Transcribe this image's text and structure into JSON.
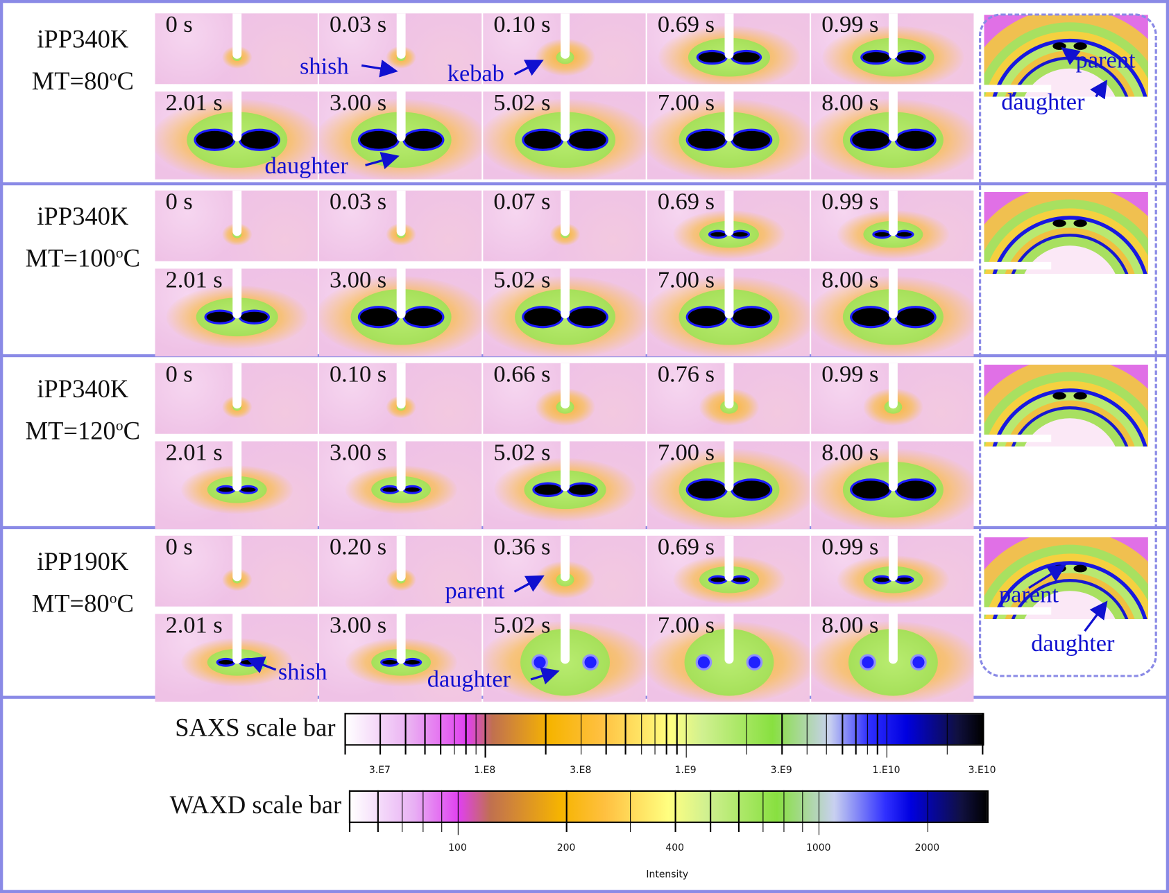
{
  "rows": [
    {
      "sample": "iPP340K",
      "mt_prefix": "MT=80",
      "mt_sup": "o",
      "mt_suffix": "C",
      "times_top": [
        "0 s",
        "0.03 s",
        "0.10 s",
        "0.69 s",
        "0.99 s"
      ],
      "times_bottom": [
        "2.01 s",
        "3.00 s",
        "5.02 s",
        "7.00 s",
        "8.00 s"
      ],
      "levels_top": [
        0,
        0,
        1,
        3,
        3
      ],
      "levels_bottom": [
        4,
        4,
        4,
        4,
        4
      ]
    },
    {
      "sample": "iPP340K",
      "mt_prefix": "MT=100",
      "mt_sup": "o",
      "mt_suffix": "C",
      "times_top": [
        "0 s",
        "0.03 s",
        "0.07 s",
        "0.69 s",
        "0.99 s"
      ],
      "times_bottom": [
        "2.01 s",
        "3.00 s",
        "5.02 s",
        "7.00 s",
        "8.00 s"
      ],
      "levels_top": [
        0,
        0,
        0,
        2,
        2
      ],
      "levels_bottom": [
        3,
        4,
        4,
        4,
        4
      ]
    },
    {
      "sample": "iPP340K",
      "mt_prefix": "MT=120",
      "mt_sup": "o",
      "mt_suffix": "C",
      "times_top": [
        "0 s",
        "0.10 s",
        "0.66 s",
        "0.76 s",
        "0.99 s"
      ],
      "times_bottom": [
        "2.01 s",
        "3.00 s",
        "5.02 s",
        "7.00 s",
        "8.00 s"
      ],
      "levels_top": [
        0,
        0,
        1,
        1,
        1
      ],
      "levels_bottom": [
        2,
        2,
        3,
        4,
        4
      ]
    },
    {
      "sample": "iPP190K",
      "mt_prefix": "MT=80",
      "mt_sup": "o",
      "mt_suffix": "C",
      "times_top": [
        "0 s",
        "0.20 s",
        "0.36 s",
        "0.69 s",
        "0.99 s"
      ],
      "times_bottom": [
        "2.01 s",
        "3.00 s",
        "5.02 s",
        "7.00 s",
        "8.00 s"
      ],
      "levels_top": [
        0,
        0,
        1,
        2,
        2
      ],
      "levels_bottom": [
        2,
        2,
        5,
        5,
        5
      ]
    }
  ],
  "annotations": {
    "r1_shish": "shish",
    "r1_kebab": "kebab",
    "r1_daughter": "daughter",
    "r1_waxd_parent": "parent",
    "r1_waxd_daughter": "daughter",
    "r4_parent": "parent",
    "r4_shish": "shish",
    "r4_daughter": "daughter",
    "r4_waxd_parent": "parent",
    "r4_waxd_daughter": "daughter"
  },
  "scale_bars": {
    "saxs": {
      "label": "SAXS scale bar",
      "range": [
        20000000.0,
        30700000000.0
      ],
      "scale": "log",
      "tick_labels": [
        {
          "v": 30000000.0,
          "t": "3.E7"
        },
        {
          "v": 100000000.0,
          "t": "1.E8"
        },
        {
          "v": 300000000.0,
          "t": "3.E8"
        },
        {
          "v": 1000000000.0,
          "t": "1.E9"
        },
        {
          "v": 3000000000.0,
          "t": "3.E9"
        },
        {
          "v": 10000000000.0,
          "t": "1.E10"
        },
        {
          "v": 30000000000.0,
          "t": "3.E10"
        }
      ]
    },
    "waxd": {
      "label": "WAXD scale bar",
      "range": [
        50,
        2960
      ],
      "scale": "log",
      "tick_labels": [
        {
          "v": 100,
          "t": "100"
        },
        {
          "v": 200,
          "t": "200"
        },
        {
          "v": 400,
          "t": "400"
        },
        {
          "v": 1000,
          "t": "1000"
        },
        {
          "v": 2000,
          "t": "2000"
        }
      ]
    },
    "axis_title": "Intensity"
  },
  "colors": {
    "border": "#8a8ae6",
    "annotation": "#1010d0"
  }
}
